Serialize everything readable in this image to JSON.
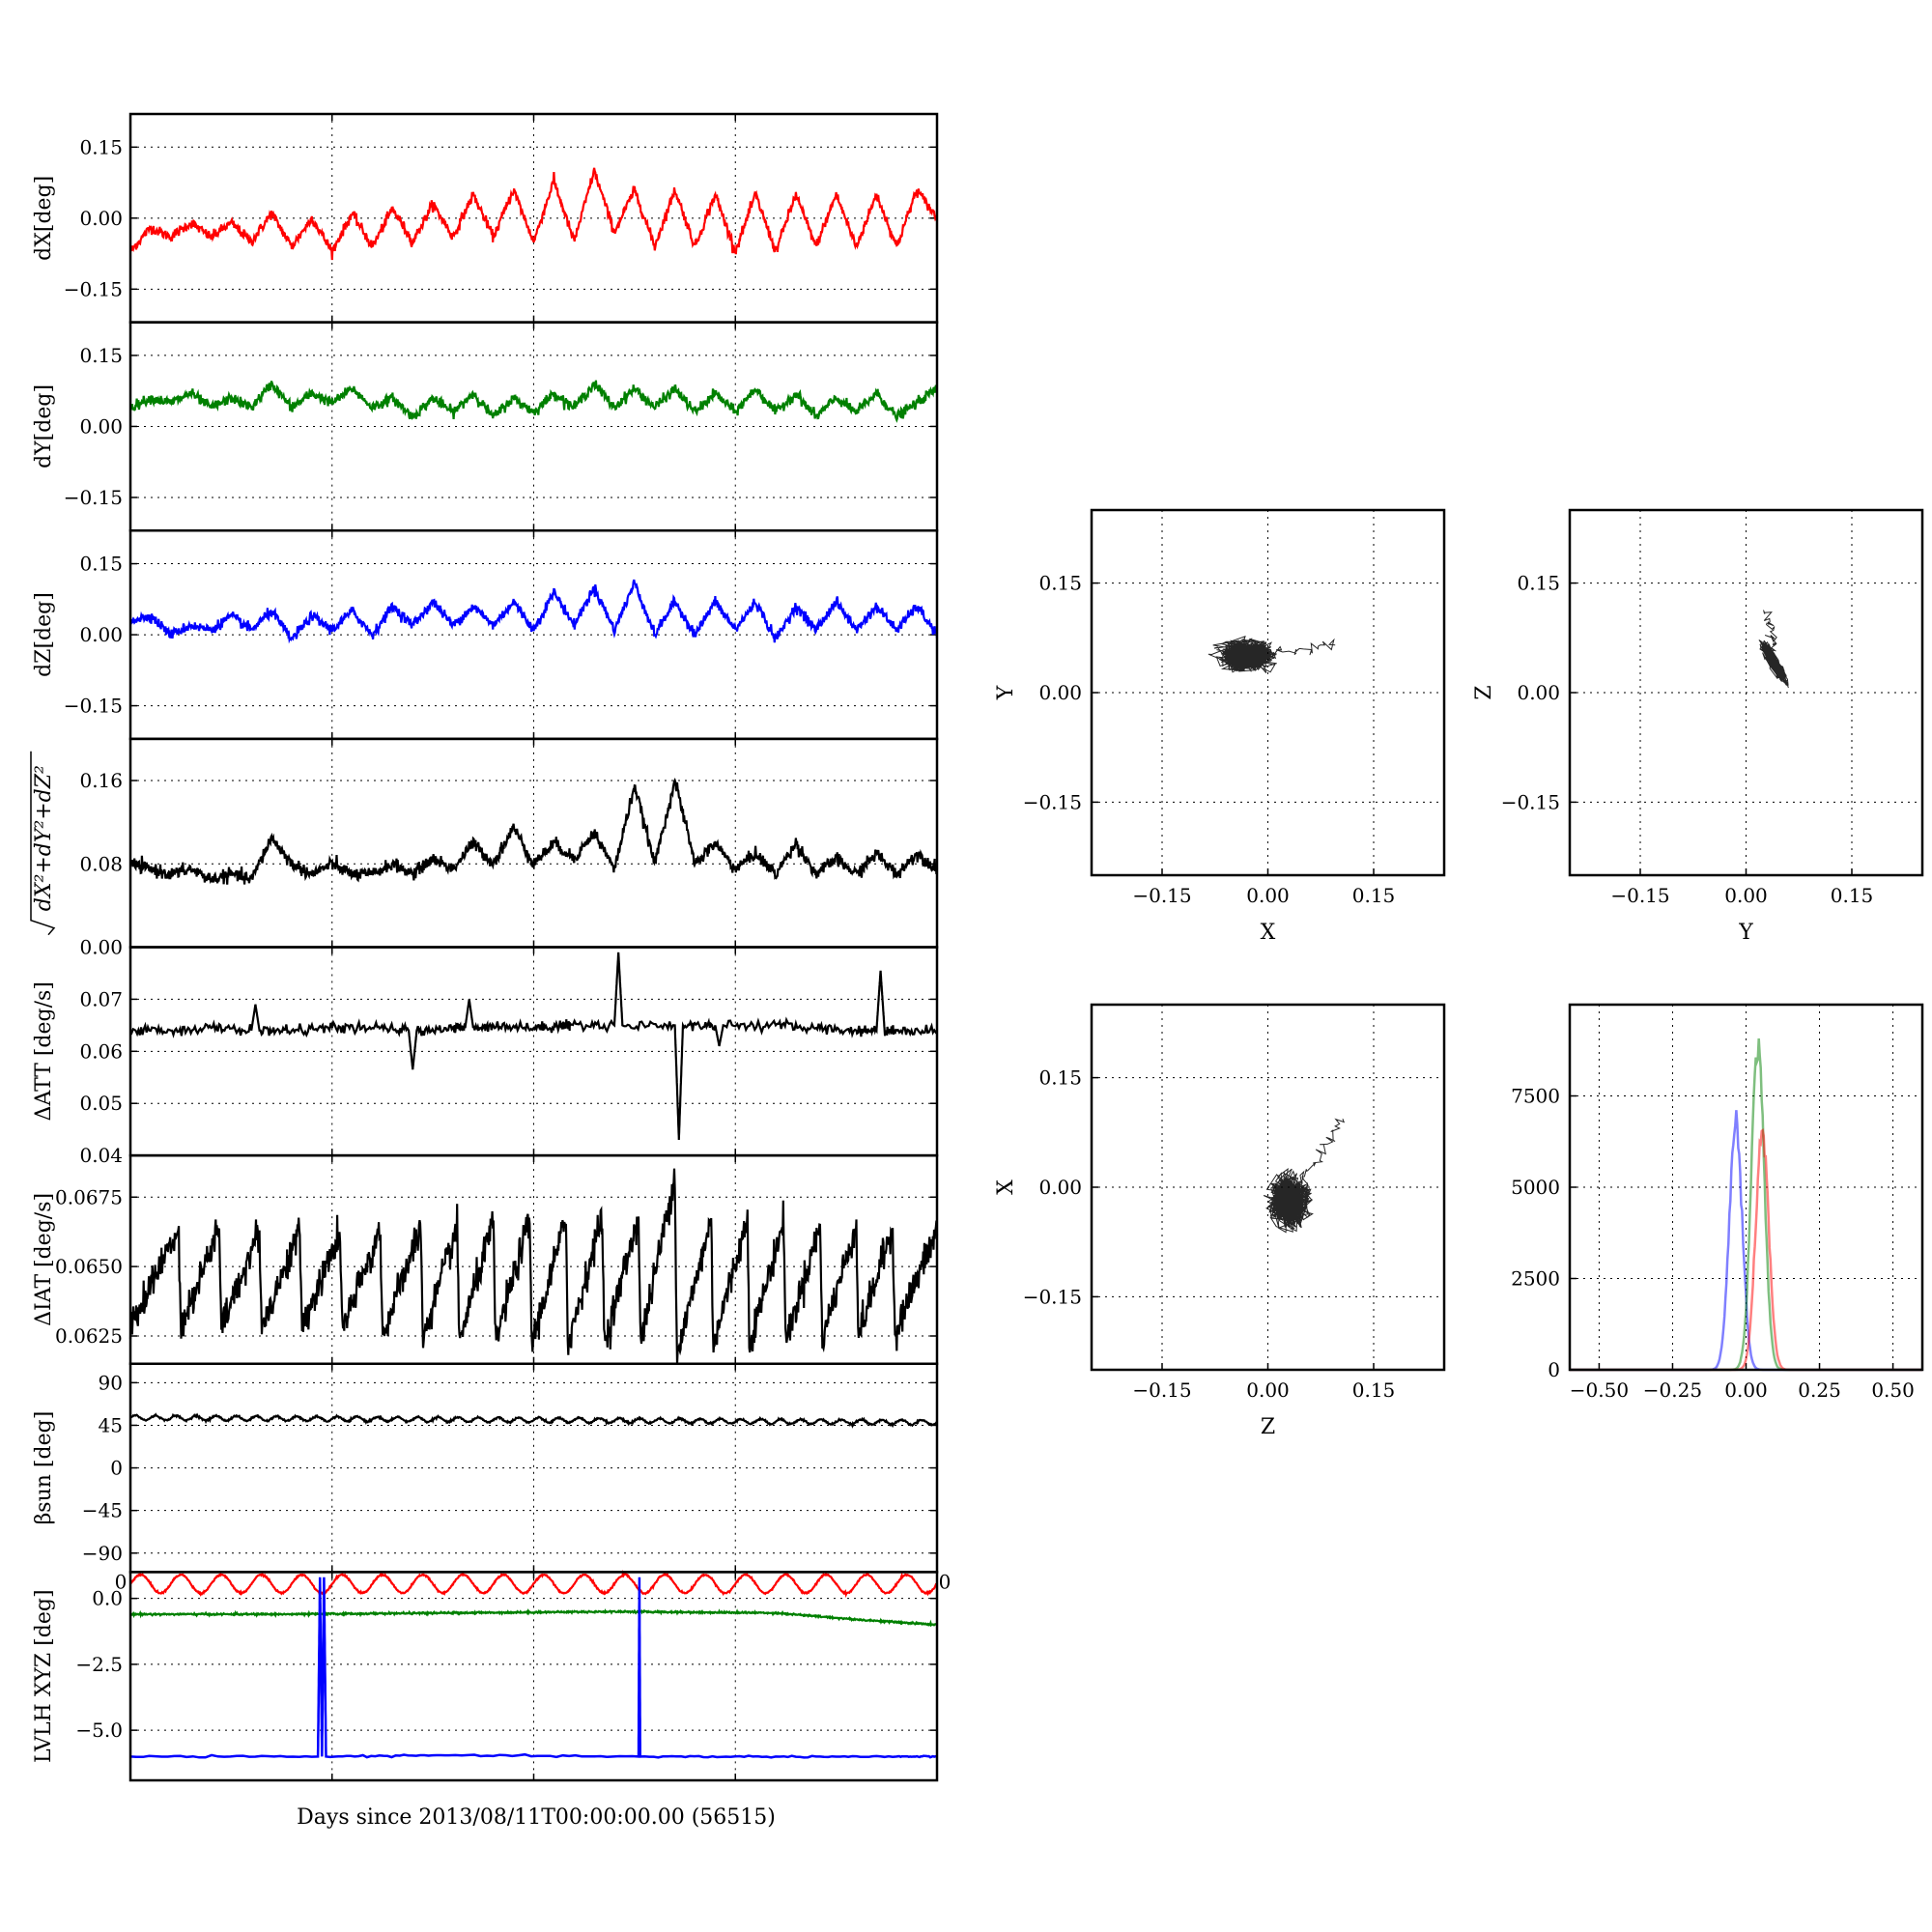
{
  "figure": {
    "shared_xlabel": "Days since 2013/08/11T00:00:00.00 (56515)"
  },
  "chart_data": [
    {
      "id": "dx",
      "type": "line",
      "ylabel": "dX[deg]",
      "ylim": [
        -0.22,
        0.22
      ],
      "yticks": [
        -0.15,
        0.0,
        0.15
      ],
      "ytick_labels": [
        "−0.15",
        "0.00",
        "0.15"
      ],
      "grid": true,
      "xlim": [
        0,
        20
      ],
      "series": [
        {
          "color": "#ff0000",
          "x": [
            0,
            0.5,
            1,
            1.5,
            2,
            2.5,
            3,
            3.5,
            4,
            4.5,
            5,
            5.5,
            6,
            6.5,
            7,
            7.5,
            8,
            8.5,
            9,
            9.5,
            10,
            10.5,
            11,
            11.5,
            12,
            12.5,
            13,
            13.5,
            14,
            14.5,
            15,
            15.5,
            16,
            16.5,
            17,
            17.5,
            18,
            18.5,
            19,
            19.5,
            20
          ],
          "y": [
            -0.07,
            -0.02,
            -0.04,
            -0.01,
            -0.04,
            -0.01,
            -0.05,
            0.01,
            -0.06,
            0.0,
            -0.07,
            0.01,
            -0.06,
            0.02,
            -0.05,
            0.03,
            -0.04,
            0.05,
            -0.04,
            0.06,
            -0.05,
            0.08,
            -0.05,
            0.1,
            -0.03,
            0.06,
            -0.06,
            0.06,
            -0.06,
            0.05,
            -0.07,
            0.05,
            -0.07,
            0.05,
            -0.06,
            0.05,
            -0.06,
            0.05,
            -0.06,
            0.06,
            0.0
          ]
        }
      ]
    },
    {
      "id": "dy",
      "type": "line",
      "ylabel": "dY[deg]",
      "ylim": [
        -0.22,
        0.22
      ],
      "yticks": [
        -0.15,
        0.0,
        0.15
      ],
      "ytick_labels": [
        "−0.15",
        "0.00",
        "0.15"
      ],
      "grid": true,
      "xlim": [
        0,
        20
      ],
      "series": [
        {
          "color": "#008000",
          "x": [
            0,
            0.5,
            1,
            1.5,
            2,
            2.5,
            3,
            3.5,
            4,
            4.5,
            5,
            5.5,
            6,
            6.5,
            7,
            7.5,
            8,
            8.5,
            9,
            9.5,
            10,
            10.5,
            11,
            11.5,
            12,
            12.5,
            13,
            13.5,
            14,
            14.5,
            15,
            15.5,
            16,
            16.5,
            17,
            17.5,
            18,
            18.5,
            19,
            19.5,
            20
          ],
          "y": [
            0.04,
            0.06,
            0.05,
            0.07,
            0.04,
            0.06,
            0.04,
            0.09,
            0.04,
            0.07,
            0.05,
            0.08,
            0.04,
            0.06,
            0.02,
            0.06,
            0.03,
            0.07,
            0.02,
            0.06,
            0.03,
            0.07,
            0.04,
            0.09,
            0.04,
            0.08,
            0.04,
            0.08,
            0.03,
            0.07,
            0.03,
            0.08,
            0.03,
            0.07,
            0.02,
            0.06,
            0.03,
            0.07,
            0.02,
            0.05,
            0.08
          ]
        }
      ]
    },
    {
      "id": "dz",
      "type": "line",
      "ylabel": "dZ[deg]",
      "ylim": [
        -0.22,
        0.22
      ],
      "yticks": [
        -0.15,
        0.0,
        0.15
      ],
      "ytick_labels": [
        "−0.15",
        "0.00",
        "0.15"
      ],
      "grid": true,
      "xlim": [
        0,
        20
      ],
      "series": [
        {
          "color": "#0000ff",
          "x": [
            0,
            0.5,
            1,
            1.5,
            2,
            2.5,
            3,
            3.5,
            4,
            4.5,
            5,
            5.5,
            6,
            6.5,
            7,
            7.5,
            8,
            8.5,
            9,
            9.5,
            10,
            10.5,
            11,
            11.5,
            12,
            12.5,
            13,
            13.5,
            14,
            14.5,
            15,
            15.5,
            16,
            16.5,
            17,
            17.5,
            18,
            18.5,
            19,
            19.5,
            20
          ],
          "y": [
            0.03,
            0.04,
            0.0,
            0.02,
            0.01,
            0.04,
            0.01,
            0.05,
            -0.01,
            0.04,
            0.01,
            0.05,
            0.0,
            0.06,
            0.02,
            0.07,
            0.02,
            0.06,
            0.02,
            0.07,
            0.01,
            0.09,
            0.02,
            0.1,
            0.01,
            0.11,
            0.0,
            0.07,
            0.0,
            0.07,
            0.01,
            0.07,
            -0.01,
            0.06,
            0.01,
            0.07,
            0.01,
            0.06,
            0.01,
            0.06,
            0.0
          ]
        }
      ]
    },
    {
      "id": "dr",
      "type": "line",
      "ylabel": "√dX²+dY²+dZ²",
      "ylim": [
        0,
        0.2
      ],
      "yticks": [
        0.0,
        0.08,
        0.16
      ],
      "ytick_labels": [
        "0.00",
        "0.08",
        "0.16"
      ],
      "grid": true,
      "xlim": [
        0,
        20
      ],
      "series": [
        {
          "color": "#000000",
          "x": [
            0,
            0.5,
            1,
            1.5,
            2,
            2.5,
            3,
            3.5,
            4,
            4.5,
            5,
            5.5,
            6,
            6.5,
            7,
            7.5,
            8,
            8.5,
            9,
            9.5,
            10,
            10.5,
            11,
            11.5,
            12,
            12.5,
            13,
            13.5,
            14,
            14.5,
            15,
            15.5,
            16,
            16.5,
            17,
            17.5,
            18,
            18.5,
            19,
            19.5,
            20
          ],
          "y": [
            0.08,
            0.075,
            0.07,
            0.075,
            0.065,
            0.07,
            0.065,
            0.105,
            0.08,
            0.07,
            0.08,
            0.07,
            0.07,
            0.08,
            0.07,
            0.085,
            0.075,
            0.1,
            0.08,
            0.115,
            0.08,
            0.1,
            0.085,
            0.11,
            0.075,
            0.155,
            0.08,
            0.16,
            0.08,
            0.1,
            0.075,
            0.09,
            0.07,
            0.1,
            0.07,
            0.085,
            0.07,
            0.09,
            0.07,
            0.09,
            0.075
          ]
        }
      ]
    },
    {
      "id": "datt",
      "type": "line",
      "ylabel": "ΔATT [deg/s]",
      "ylim": [
        0.04,
        0.08
      ],
      "yticks": [
        0.04,
        0.05,
        0.06,
        0.07
      ],
      "ytick_labels": [
        "0.04",
        "0.05",
        "0.06",
        "0.07"
      ],
      "grid": true,
      "xlim": [
        0,
        20
      ],
      "series": [
        {
          "color": "#000000",
          "x": [
            0,
            1,
            2,
            3,
            3.1,
            3.2,
            4,
            5,
            6,
            6.9,
            7.0,
            7.1,
            8,
            8.3,
            8.4,
            8.5,
            9,
            10,
            10.7,
            10.8,
            10.9,
            12,
            12.1,
            12.2,
            13.5,
            13.6,
            13.7,
            14.5,
            14.6,
            14.7,
            16,
            17,
            18,
            18.5,
            18.6,
            18.7,
            19,
            20
          ],
          "y": [
            0.064,
            0.064,
            0.0645,
            0.064,
            0.069,
            0.064,
            0.064,
            0.0645,
            0.0645,
            0.064,
            0.0565,
            0.064,
            0.0645,
            0.0645,
            0.07,
            0.0645,
            0.065,
            0.0645,
            0.065,
            0.065,
            0.065,
            0.065,
            0.079,
            0.065,
            0.065,
            0.043,
            0.065,
            0.065,
            0.061,
            0.065,
            0.065,
            0.0645,
            0.064,
            0.064,
            0.0755,
            0.064,
            0.064,
            0.064
          ]
        }
      ]
    },
    {
      "id": "diat",
      "type": "line",
      "ylabel": "ΔIAT [deg/s]",
      "ylim": [
        0.0615,
        0.069
      ],
      "yticks": [
        0.0625,
        0.065,
        0.0675
      ],
      "ytick_labels": [
        "0.0625",
        "0.0650",
        "0.0675"
      ],
      "grid": true,
      "xlim": [
        0,
        20
      ],
      "series": [
        {
          "color": "#000000",
          "x": [
            0,
            1.2,
            1.25,
            2.2,
            2.25,
            3.2,
            3.25,
            4.2,
            4.25,
            5.2,
            5.25,
            6.2,
            6.25,
            7.2,
            7.25,
            8.1,
            8.15,
            9.0,
            9.05,
            9.9,
            9.95,
            10.8,
            10.85,
            11.7,
            11.75,
            12.6,
            12.65,
            13.5,
            13.55,
            14.4,
            14.45,
            15.3,
            15.35,
            16.2,
            16.25,
            17.1,
            17.15,
            18.0,
            18.05,
            18.9,
            18.95,
            20
          ],
          "y": [
            0.0628,
            0.0664,
            0.0628,
            0.0664,
            0.0628,
            0.0663,
            0.0628,
            0.0663,
            0.0628,
            0.0662,
            0.0627,
            0.0663,
            0.0625,
            0.0664,
            0.0624,
            0.0664,
            0.0623,
            0.0666,
            0.0623,
            0.0667,
            0.0622,
            0.0667,
            0.0622,
            0.0668,
            0.0622,
            0.0668,
            0.0622,
            0.0683,
            0.0618,
            0.0667,
            0.0622,
            0.0667,
            0.0622,
            0.0666,
            0.0623,
            0.0665,
            0.0624,
            0.0665,
            0.0625,
            0.0664,
            0.0626,
            0.0663
          ]
        }
      ]
    },
    {
      "id": "beta",
      "type": "line",
      "ylabel": "βsun [deg]",
      "ylim": [
        -110,
        110
      ],
      "yticks": [
        -90,
        -45,
        0,
        45,
        90
      ],
      "ytick_labels": [
        "−90",
        "−45",
        "0",
        "45",
        "90"
      ],
      "grid": true,
      "xlim": [
        0,
        20
      ],
      "series": [
        {
          "color": "#000000",
          "x": [
            0,
            20
          ],
          "y": [
            53,
            48
          ],
          "wave_amp": 2.5,
          "wave_cycles": 40
        }
      ]
    },
    {
      "id": "lvlh",
      "type": "line",
      "ylabel": "LVLH XYZ [deg]",
      "ylim": [
        -6.9,
        1.0
      ],
      "yticks": [
        -5.0,
        -2.5,
        0.0
      ],
      "ytick_labels": [
        "−5.0",
        "−2.5",
        "0.0"
      ],
      "grid": true,
      "xlim": [
        0,
        20
      ],
      "x_edge_labels": [
        "0",
        "0"
      ],
      "series": [
        {
          "color": "#ff0000",
          "x": [
            0,
            20
          ],
          "y": [
            0.55,
            0.55
          ],
          "wave_amp": 0.35,
          "wave_cycles": 20
        },
        {
          "color": "#008000",
          "x": [
            0,
            4,
            8,
            12,
            16,
            18,
            20
          ],
          "y": [
            -0.6,
            -0.6,
            -0.55,
            -0.5,
            -0.55,
            -0.8,
            -1.0
          ]
        },
        {
          "color": "#0000ff",
          "x": [
            0,
            4.65,
            4.7,
            4.75,
            4.8,
            4.85,
            7.9,
            12.6,
            12.62,
            12.64,
            16,
            19,
            20
          ],
          "y": [
            -6.0,
            -6.0,
            0.8,
            -6.0,
            0.8,
            -6.0,
            -5.95,
            -6.0,
            0.8,
            -6.0,
            -6.0,
            -6.0,
            -6.0
          ]
        }
      ]
    },
    {
      "id": "xy",
      "type": "scatter",
      "xlabel": "X",
      "ylabel": "Y",
      "xlim": [
        -0.25,
        0.25
      ],
      "ylim": [
        -0.25,
        0.25
      ],
      "ticks": [
        -0.15,
        0.0,
        0.15
      ],
      "tick_labels": [
        "−0.15",
        "0.00",
        "0.15"
      ],
      "grid": true,
      "cloud": {
        "cx": -0.03,
        "cy": 0.05,
        "sx": 0.032,
        "sy": 0.018,
        "tail": [
          0.1,
          0.065
        ]
      }
    },
    {
      "id": "yz",
      "type": "scatter",
      "xlabel": "Y",
      "ylabel": "Z",
      "xlim": [
        -0.25,
        0.25
      ],
      "ylim": [
        -0.25,
        0.25
      ],
      "ticks": [
        -0.15,
        0.0,
        0.15
      ],
      "tick_labels": [
        "−0.15",
        "0.00",
        "0.15"
      ],
      "grid": true,
      "cloud": {
        "cx": 0.04,
        "cy": 0.04,
        "sx": 0.015,
        "sy": 0.025,
        "tail": [
          0.03,
          0.11
        ],
        "slope": -1.4
      }
    },
    {
      "id": "zx",
      "type": "scatter",
      "xlabel": "Z",
      "ylabel": "X",
      "xlim": [
        -0.25,
        0.25
      ],
      "ylim": [
        -0.25,
        0.25
      ],
      "ticks": [
        -0.15,
        0.0,
        0.15
      ],
      "tick_labels": [
        "−0.15",
        "0.00",
        "0.15"
      ],
      "grid": true,
      "cloud": {
        "cx": 0.03,
        "cy": -0.02,
        "sx": 0.025,
        "sy": 0.03,
        "tail": [
          0.11,
          0.1
        ]
      }
    },
    {
      "id": "hist",
      "type": "histogram",
      "xlim": [
        -0.6,
        0.6
      ],
      "ylim": [
        0,
        10000
      ],
      "xticks": [
        -0.5,
        -0.25,
        0.0,
        0.25,
        0.5
      ],
      "xtick_labels": [
        "−0.50",
        "−0.25",
        "0.00",
        "0.25",
        "0.50"
      ],
      "yticks": [
        0,
        2500,
        5000,
        7500
      ],
      "ytick_labels": [
        "0",
        "2500",
        "5000",
        "7500"
      ],
      "grid": true,
      "series": [
        {
          "color": "#0000ff",
          "center": -0.035,
          "width": 0.022,
          "peak": 6800
        },
        {
          "color": "#008000",
          "center": 0.04,
          "width": 0.022,
          "peak": 9000
        },
        {
          "color": "#ff0000",
          "center": 0.055,
          "width": 0.022,
          "peak": 6600
        }
      ]
    }
  ]
}
